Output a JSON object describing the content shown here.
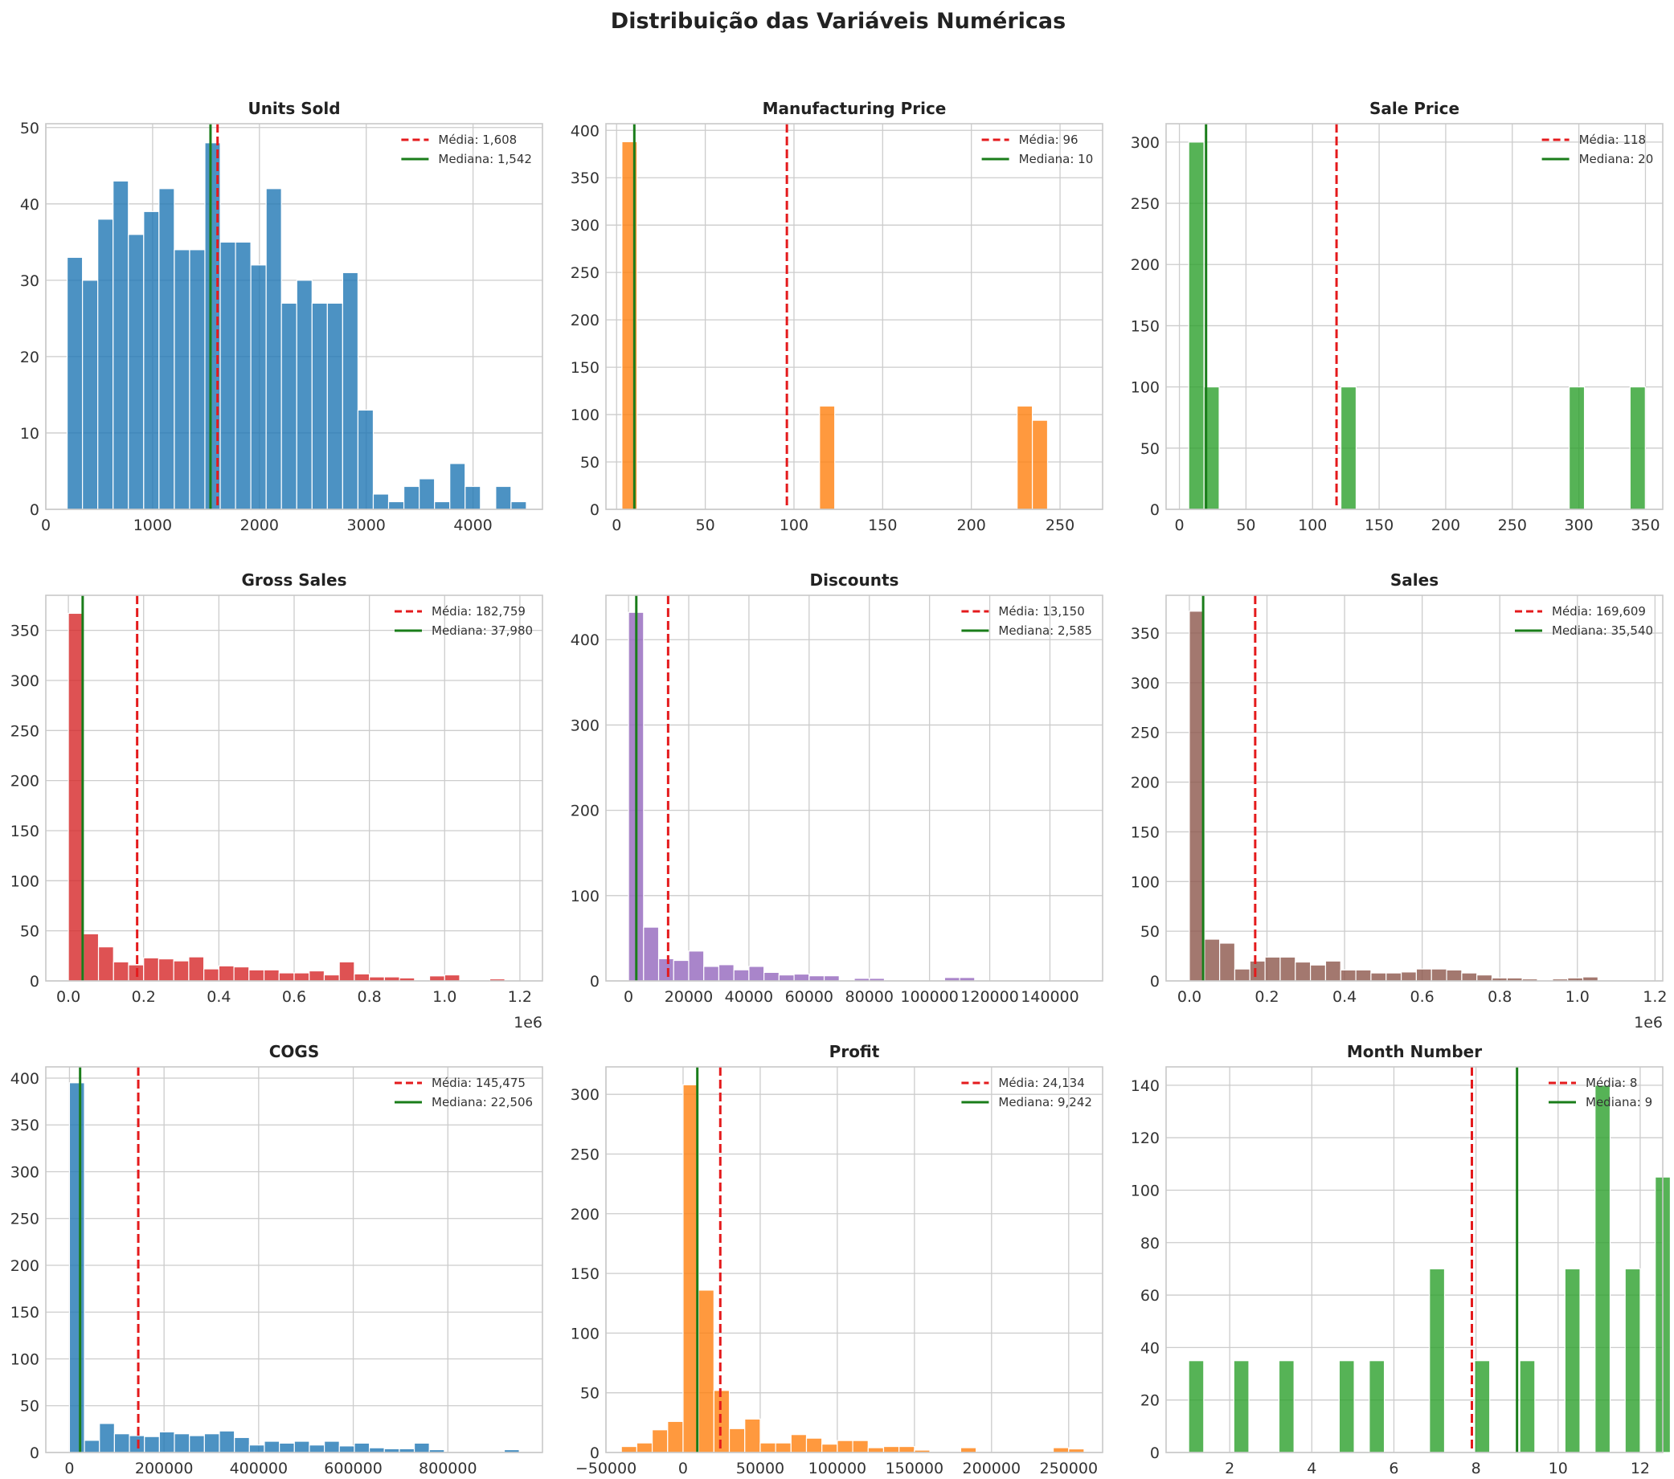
{
  "figure": {
    "title": "Distribuição das Variáveis Numéricas",
    "colors": {
      "mean_line": "#e41a1c",
      "median_line": "#1a7d1a",
      "grid": "#cccccc"
    }
  },
  "chart_data": [
    {
      "type": "histogram",
      "title": "Units Sold",
      "color": "#1f77b4",
      "xlim": [
        0,
        4650
      ],
      "ylim": [
        0,
        50.5
      ],
      "xticks": [
        0,
        1000,
        2000,
        3000,
        4000
      ],
      "xtick_labels": [
        "0",
        "1000",
        "2000",
        "3000",
        "4000"
      ],
      "yticks": [
        0,
        10,
        20,
        30,
        40,
        50
      ],
      "ytick_labels": [
        "0",
        "10",
        "20",
        "30",
        "40",
        "50"
      ],
      "bin_start": 200,
      "bin_width": 143.3,
      "counts": [
        33,
        30,
        38,
        43,
        36,
        39,
        42,
        34,
        34,
        48,
        35,
        35,
        32,
        42,
        27,
        30,
        27,
        27,
        31,
        13,
        2,
        1,
        3,
        4,
        1,
        6,
        3,
        0,
        3,
        1
      ],
      "mean": 1608,
      "median": 1542,
      "legend": [
        "Média: 1,608",
        "Mediana: 1,542"
      ],
      "legend_position": "upper-right",
      "offset_text": ""
    },
    {
      "type": "histogram",
      "title": "Manufacturing Price",
      "color": "#ff7f0e",
      "xlim": [
        -6,
        274
      ],
      "ylim": [
        0,
        407
      ],
      "xticks": [
        0,
        50,
        100,
        150,
        200,
        250
      ],
      "xtick_labels": [
        "0",
        "50",
        "100",
        "150",
        "200",
        "250"
      ],
      "yticks": [
        0,
        50,
        100,
        150,
        200,
        250,
        300,
        350,
        400
      ],
      "ytick_labels": [
        "0",
        "50",
        "100",
        "150",
        "200",
        "250",
        "300",
        "350",
        "400"
      ],
      "bin_start": 3,
      "bin_width": 8.57,
      "counts": [
        388,
        0,
        0,
        0,
        0,
        0,
        0,
        0,
        0,
        0,
        0,
        0,
        0,
        109,
        0,
        0,
        0,
        0,
        0,
        0,
        0,
        0,
        0,
        0,
        0,
        0,
        109,
        94
      ],
      "mean": 96,
      "median": 10,
      "legend": [
        "Média: 96",
        "Mediana: 10"
      ],
      "legend_position": "upper-right",
      "offset_text": ""
    },
    {
      "type": "histogram",
      "title": "Sale Price",
      "color": "#2ca02c",
      "xlim": [
        -10,
        363
      ],
      "ylim": [
        0,
        315
      ],
      "xticks": [
        0,
        50,
        100,
        150,
        200,
        250,
        300,
        350
      ],
      "xtick_labels": [
        "0",
        "50",
        "100",
        "150",
        "200",
        "250",
        "300",
        "350"
      ],
      "yticks": [
        0,
        50,
        100,
        150,
        200,
        250,
        300
      ],
      "ytick_labels": [
        "0",
        "50",
        "100",
        "150",
        "200",
        "250",
        "300"
      ],
      "bin_start": 7,
      "bin_width": 11.43,
      "counts": [
        300,
        100,
        0,
        0,
        0,
        0,
        0,
        0,
        0,
        0,
        100,
        0,
        0,
        0,
        0,
        0,
        0,
        0,
        0,
        0,
        0,
        0,
        0,
        0,
        0,
        100,
        0,
        0,
        0,
        100
      ],
      "mean": 118,
      "median": 20,
      "legend": [
        "Média: 118",
        "Mediana: 20"
      ],
      "legend_position": "upper-right",
      "offset_text": ""
    },
    {
      "type": "histogram",
      "title": "Gross Sales",
      "color": "#d62728",
      "xlim": [
        -60000,
        1260000
      ],
      "ylim": [
        0,
        385
      ],
      "xticks": [
        0,
        200000,
        400000,
        600000,
        800000,
        1000000,
        1200000
      ],
      "xtick_labels": [
        "0.0",
        "0.2",
        "0.4",
        "0.6",
        "0.8",
        "1.0",
        "1.2"
      ],
      "yticks": [
        0,
        50,
        100,
        150,
        200,
        250,
        300,
        350
      ],
      "ytick_labels": [
        "0",
        "50",
        "100",
        "150",
        "200",
        "250",
        "300",
        "350"
      ],
      "bin_start": 0,
      "bin_width": 40000,
      "counts": [
        367,
        47,
        34,
        19,
        16,
        23,
        22,
        20,
        24,
        12,
        15,
        14,
        11,
        11,
        8,
        8,
        10,
        6,
        19,
        7,
        4,
        4,
        3,
        0,
        5,
        6,
        0,
        0,
        2,
        0,
        0
      ],
      "mean": 182759,
      "median": 37980,
      "legend": [
        "Média: 182,759",
        "Mediana: 37,980"
      ],
      "legend_position": "upper-right",
      "offset_text": "1e6"
    },
    {
      "type": "histogram",
      "title": "Discounts",
      "color": "#9467bd",
      "xlim": [
        -7500,
        157500
      ],
      "ylim": [
        0,
        452
      ],
      "xticks": [
        0,
        20000,
        40000,
        60000,
        80000,
        100000,
        120000,
        140000
      ],
      "xtick_labels": [
        "0",
        "20000",
        "40000",
        "60000",
        "80000",
        "100000",
        "120000",
        "140000"
      ],
      "yticks": [
        0,
        100,
        200,
        300,
        400
      ],
      "ytick_labels": [
        "0",
        "100",
        "200",
        "300",
        "400"
      ],
      "bin_start": 0,
      "bin_width": 5000,
      "counts": [
        432,
        63,
        26,
        24,
        35,
        17,
        19,
        13,
        17,
        10,
        7,
        8,
        6,
        6,
        0,
        3,
        3,
        0,
        0,
        0,
        0,
        4,
        4,
        0,
        0,
        0,
        0,
        0,
        0,
        0
      ],
      "mean": 13150,
      "median": 2585,
      "legend": [
        "Média: 13,150",
        "Mediana: 2,585"
      ],
      "legend_position": "upper-right",
      "offset_text": ""
    },
    {
      "type": "histogram",
      "title": "Sales",
      "color": "#8c564b",
      "xlim": [
        -60000,
        1220000
      ],
      "ylim": [
        0,
        388
      ],
      "xticks": [
        0,
        200000,
        400000,
        600000,
        800000,
        1000000,
        1200000
      ],
      "xtick_labels": [
        "0.0",
        "0.2",
        "0.4",
        "0.6",
        "0.8",
        "1.0",
        "1.2"
      ],
      "yticks": [
        0,
        50,
        100,
        150,
        200,
        250,
        300,
        350
      ],
      "ytick_labels": [
        "0",
        "50",
        "100",
        "150",
        "200",
        "250",
        "300",
        "350"
      ],
      "bin_start": 0,
      "bin_width": 39000,
      "counts": [
        372,
        42,
        38,
        12,
        20,
        24,
        24,
        19,
        16,
        20,
        11,
        11,
        8,
        8,
        9,
        12,
        12,
        11,
        8,
        6,
        3,
        3,
        2,
        1,
        2,
        3,
        4,
        0,
        0,
        0
      ],
      "mean": 169609,
      "median": 35540,
      "legend": [
        "Média: 169,609",
        "Mediana: 35,540"
      ],
      "legend_position": "upper-right",
      "offset_text": "1e6"
    },
    {
      "type": "histogram",
      "title": "COGS",
      "color": "#1f77b4",
      "xlim": [
        -50000,
        1000000
      ],
      "ylim": [
        0,
        412
      ],
      "xticks": [
        0,
        200000,
        400000,
        600000,
        800000
      ],
      "xtick_labels": [
        "0",
        "200000",
        "400000",
        "600000",
        "800000"
      ],
      "yticks": [
        0,
        50,
        100,
        150,
        200,
        250,
        300,
        350,
        400
      ],
      "ytick_labels": [
        "0",
        "50",
        "100",
        "150",
        "200",
        "250",
        "300",
        "350",
        "400"
      ],
      "bin_start": 0,
      "bin_width": 31700,
      "counts": [
        395,
        13,
        31,
        20,
        18,
        17,
        22,
        20,
        18,
        20,
        23,
        16,
        8,
        12,
        10,
        12,
        8,
        12,
        7,
        10,
        5,
        4,
        4,
        10,
        3,
        0,
        0,
        0,
        0,
        3
      ],
      "mean": 145475,
      "median": 22506,
      "legend": [
        "Média: 145,475",
        "Mediana: 22,506"
      ],
      "legend_position": "upper-right",
      "offset_text": ""
    },
    {
      "type": "histogram",
      "title": "Profit",
      "color": "#ff7f0e",
      "xlim": [
        -50000,
        272000
      ],
      "ylim": [
        0,
        323
      ],
      "xticks": [
        -50000,
        0,
        50000,
        100000,
        150000,
        200000,
        250000
      ],
      "xtick_labels": [
        "−50000",
        "0",
        "50000",
        "100000",
        "150000",
        "200000",
        "250000"
      ],
      "yticks": [
        0,
        50,
        100,
        150,
        200,
        250,
        300
      ],
      "ytick_labels": [
        "0",
        "50",
        "100",
        "150",
        "200",
        "250",
        "300"
      ],
      "bin_start": -40000,
      "bin_width": 10000,
      "counts": [
        5,
        8,
        19,
        26,
        308,
        136,
        52,
        20,
        28,
        8,
        8,
        15,
        12,
        7,
        10,
        10,
        4,
        5,
        5,
        2,
        0,
        0,
        4,
        0,
        0,
        0,
        0,
        0,
        4,
        3
      ],
      "mean": 24134,
      "median": 9242,
      "legend": [
        "Média: 24,134",
        "Mediana: 9,242"
      ],
      "legend_position": "upper-right",
      "offset_text": ""
    },
    {
      "type": "histogram",
      "title": "Month Number",
      "color": "#2ca02c",
      "xlim": [
        0.45,
        12.55
      ],
      "ylim": [
        0,
        147
      ],
      "xticks": [
        2,
        4,
        6,
        8,
        10,
        12
      ],
      "xtick_labels": [
        "2",
        "4",
        "6",
        "8",
        "10",
        "12"
      ],
      "yticks": [
        0,
        20,
        40,
        60,
        80,
        100,
        120,
        140
      ],
      "ytick_labels": [
        "0",
        "20",
        "40",
        "60",
        "80",
        "100",
        "120",
        "140"
      ],
      "bin_start": 1,
      "bin_width": 0.3667,
      "counts": [
        35,
        0,
        0,
        35,
        0,
        0,
        35,
        0,
        0,
        0,
        35,
        0,
        35,
        0,
        0,
        0,
        70,
        0,
        0,
        35,
        0,
        0,
        35,
        0,
        0,
        70,
        0,
        140,
        0,
        70,
        0,
        105
      ],
      "mean": 7.9,
      "median": 9,
      "legend": [
        "Média: 8",
        "Mediana: 9"
      ],
      "legend_position": "upper-right",
      "offset_text": ""
    }
  ]
}
